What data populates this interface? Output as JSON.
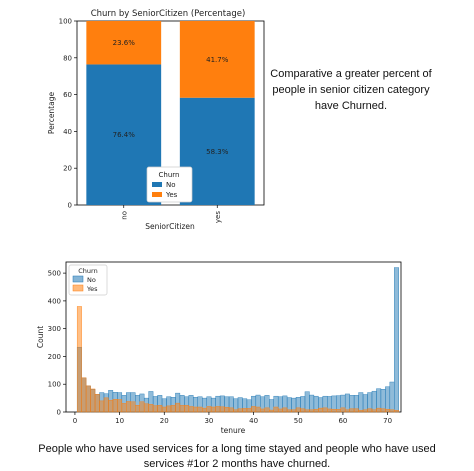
{
  "chart_data": [
    {
      "type": "bar",
      "stacked": true,
      "title": "Churn by SeniorCitizen (Percentage)",
      "xlabel": "SeniorCitizen",
      "ylabel": "Percentage",
      "categories": [
        "no",
        "yes"
      ],
      "ylim": [
        0,
        100
      ],
      "yticks": [
        "0",
        "20",
        "40",
        "60",
        "80",
        "100"
      ],
      "series": [
        {
          "name": "No",
          "values": [
            76.4,
            58.3
          ],
          "labels": [
            "76.4%",
            "58.3%"
          ],
          "color": "#1f77b4"
        },
        {
          "name": "Yes",
          "values": [
            23.6,
            41.7
          ],
          "labels": [
            "23.6%",
            "41.7%"
          ],
          "color": "#ff7f0e"
        }
      ],
      "legend": {
        "title": "Churn",
        "placement": "bottom-center"
      },
      "grid": false
    },
    {
      "type": "bar",
      "histogram": true,
      "xlabel": "tenure",
      "ylabel": "Count",
      "xlim": [
        -2,
        73
      ],
      "ylim": [
        0,
        540
      ],
      "xticks": [
        "0",
        "10",
        "20",
        "30",
        "40",
        "50",
        "60",
        "70"
      ],
      "yticks": [
        "0",
        "100",
        "200",
        "300",
        "400",
        "500"
      ],
      "bins": [
        0,
        1,
        2,
        3,
        4,
        5,
        6,
        7,
        8,
        9,
        10,
        11,
        12,
        13,
        14,
        15,
        16,
        17,
        18,
        19,
        20,
        21,
        22,
        23,
        24,
        25,
        26,
        27,
        28,
        29,
        30,
        31,
        32,
        33,
        34,
        35,
        36,
        37,
        38,
        39,
        40,
        41,
        42,
        43,
        44,
        45,
        46,
        47,
        48,
        49,
        50,
        51,
        52,
        53,
        54,
        55,
        56,
        57,
        58,
        59,
        60,
        61,
        62,
        63,
        64,
        65,
        66,
        67,
        68,
        69,
        70,
        71,
        72
      ],
      "series": [
        {
          "name": "No",
          "color": "#1f77b4",
          "values": [
            0,
            233,
            123,
            94,
            82,
            64,
            70,
            66,
            78,
            71,
            70,
            60,
            70,
            70,
            60,
            65,
            50,
            74,
            56,
            60,
            48,
            55,
            53,
            68,
            60,
            55,
            60,
            53,
            55,
            50,
            55,
            50,
            57,
            58,
            55,
            55,
            48,
            52,
            48,
            44,
            57,
            61,
            55,
            60,
            45,
            57,
            55,
            58,
            52,
            50,
            53,
            56,
            73,
            61,
            57,
            52,
            57,
            56,
            58,
            59,
            61,
            65,
            60,
            60,
            70,
            63,
            70,
            75,
            84,
            82,
            91,
            108,
            520
          ]
        },
        {
          "name": "Yes",
          "color": "#ff7f0e",
          "values": [
            0,
            380,
            123,
            94,
            83,
            64,
            40,
            51,
            42,
            46,
            45,
            31,
            38,
            37,
            24,
            37,
            30,
            28,
            23,
            24,
            18,
            22,
            24,
            32,
            24,
            24,
            20,
            18,
            18,
            14,
            20,
            18,
            20,
            19,
            17,
            15,
            8,
            12,
            13,
            13,
            20,
            18,
            11,
            15,
            7,
            18,
            11,
            15,
            8,
            8,
            15,
            12,
            8,
            8,
            10,
            14,
            15,
            11,
            10,
            10,
            15,
            8,
            12,
            12,
            6,
            8,
            12,
            8,
            14,
            12,
            10,
            8,
            6
          ]
        }
      ],
      "legend": {
        "title": "Churn",
        "placement": "top-left"
      },
      "grid": false
    }
  ],
  "notes": {
    "top_right": [
      "Comparative a greater percent of",
      "people in  senior citizen category",
      "have Churned."
    ],
    "bottom": [
      "People who have used services for a long time stayed and people who have used",
      "services #1or 2 months have churned."
    ]
  }
}
